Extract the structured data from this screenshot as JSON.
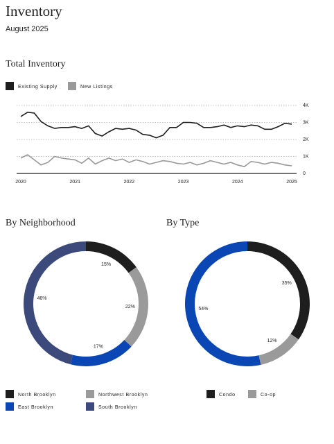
{
  "header": {
    "title": "Inventory",
    "subtitle": "August 2025"
  },
  "chart_data": [
    {
      "type": "line",
      "title": "Total Inventory",
      "x": [
        2020,
        2020.125,
        2020.25,
        2020.375,
        2020.5,
        2020.625,
        2020.75,
        2020.875,
        2021,
        2021.125,
        2021.25,
        2021.375,
        2021.5,
        2021.625,
        2021.75,
        2021.875,
        2022,
        2022.125,
        2022.25,
        2022.375,
        2022.5,
        2022.625,
        2022.75,
        2022.875,
        2023,
        2023.125,
        2023.25,
        2023.375,
        2023.5,
        2023.625,
        2023.75,
        2023.875,
        2024,
        2024.125,
        2024.25,
        2024.375,
        2024.5,
        2024.625,
        2024.75,
        2024.875,
        2025
      ],
      "series": [
        {
          "name": "Existing Supply",
          "color": "#1e1e1e",
          "values": [
            3350,
            3600,
            3550,
            3050,
            2800,
            2650,
            2700,
            2700,
            2750,
            2650,
            2800,
            2350,
            2200,
            2450,
            2650,
            2600,
            2650,
            2550,
            2300,
            2250,
            2100,
            2250,
            2700,
            2700,
            3000,
            3000,
            2950,
            2700,
            2700,
            2750,
            2850,
            2700,
            2800,
            2750,
            2850,
            2800,
            2600,
            2600,
            2750,
            2950,
            2900
          ]
        },
        {
          "name": "New Listings",
          "color": "#999999",
          "values": [
            900,
            1100,
            800,
            500,
            650,
            1000,
            900,
            850,
            800,
            600,
            900,
            550,
            750,
            900,
            750,
            850,
            650,
            800,
            700,
            550,
            650,
            750,
            700,
            600,
            550,
            650,
            500,
            600,
            750,
            650,
            550,
            650,
            500,
            400,
            700,
            650,
            550,
            650,
            600,
            500,
            450
          ]
        }
      ],
      "xlim": [
        2020,
        2025
      ],
      "xticks": [
        2020,
        2021,
        2022,
        2023,
        2024,
        2025
      ],
      "ylim": [
        0,
        4000
      ],
      "yticks": [
        0,
        {
          "value": 1000,
          "label": "1K"
        },
        {
          "value": 2000,
          "label": "2K"
        },
        {
          "value": 3000,
          "label": "3K"
        },
        {
          "value": 4000,
          "label": "4K"
        }
      ],
      "grid": true
    },
    {
      "type": "pie",
      "title": "By Neighborhood",
      "categories": [
        "North Brooklyn",
        "Northwest Brooklyn",
        "East Brooklyn",
        "South Brooklyn"
      ],
      "values": [
        15,
        22,
        17,
        46
      ],
      "value_labels": [
        "15%",
        "22%",
        "17%",
        "46%"
      ],
      "colors": [
        "#1e1e1e",
        "#9a9a9a",
        "#0a47b5",
        "#3b4a7a"
      ]
    },
    {
      "type": "pie",
      "title": "By Type",
      "categories": [
        "Condo",
        "Co-op",
        null
      ],
      "values": [
        35,
        12,
        54
      ],
      "value_labels": [
        "35%",
        "12%",
        "54%"
      ],
      "colors": [
        "#1e1e1e",
        "#9a9a9a",
        "#0a47b5"
      ]
    }
  ]
}
